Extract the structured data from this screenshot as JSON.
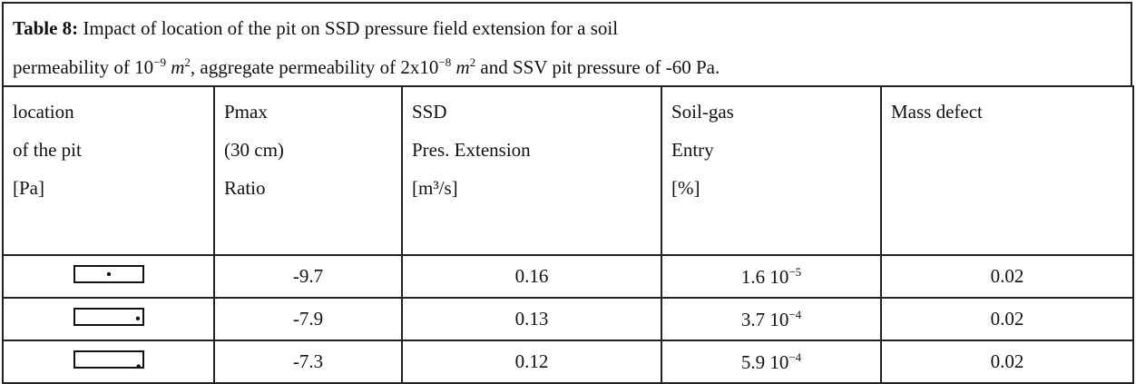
{
  "caption": {
    "label": "Table 8:",
    "line1": "Impact of location of the pit on SSD pressure field extension for a soil",
    "line2": [
      "permeability of 10",
      "−9",
      " m",
      "2",
      ", aggregate permeability of 2x10",
      "−8",
      " m",
      "2",
      " and SSV pit pressure of -60 Pa."
    ]
  },
  "table": {
    "headers": [
      [
        "location",
        "of the pit",
        "[Pa]"
      ],
      [
        "Pmax",
        "(30 cm)",
        "Ratio"
      ],
      [
        "SSD",
        "Pres. Extension",
        "[m³/s]"
      ],
      [
        "Soil-gas",
        "Entry",
        "[%]"
      ],
      [
        "Mass defect"
      ]
    ],
    "rows": [
      [
        -9.7,
        0.16,
        {
          "base": "1.6 10",
          "exp": "−5"
        },
        0.02
      ],
      [
        -7.9,
        0.13,
        {
          "base": "3.7 10",
          "exp": "−4"
        },
        0.02
      ],
      [
        -7.3,
        0.12,
        {
          "base": "5.9 10",
          "exp": "−4"
        },
        0.02
      ]
    ]
  }
}
